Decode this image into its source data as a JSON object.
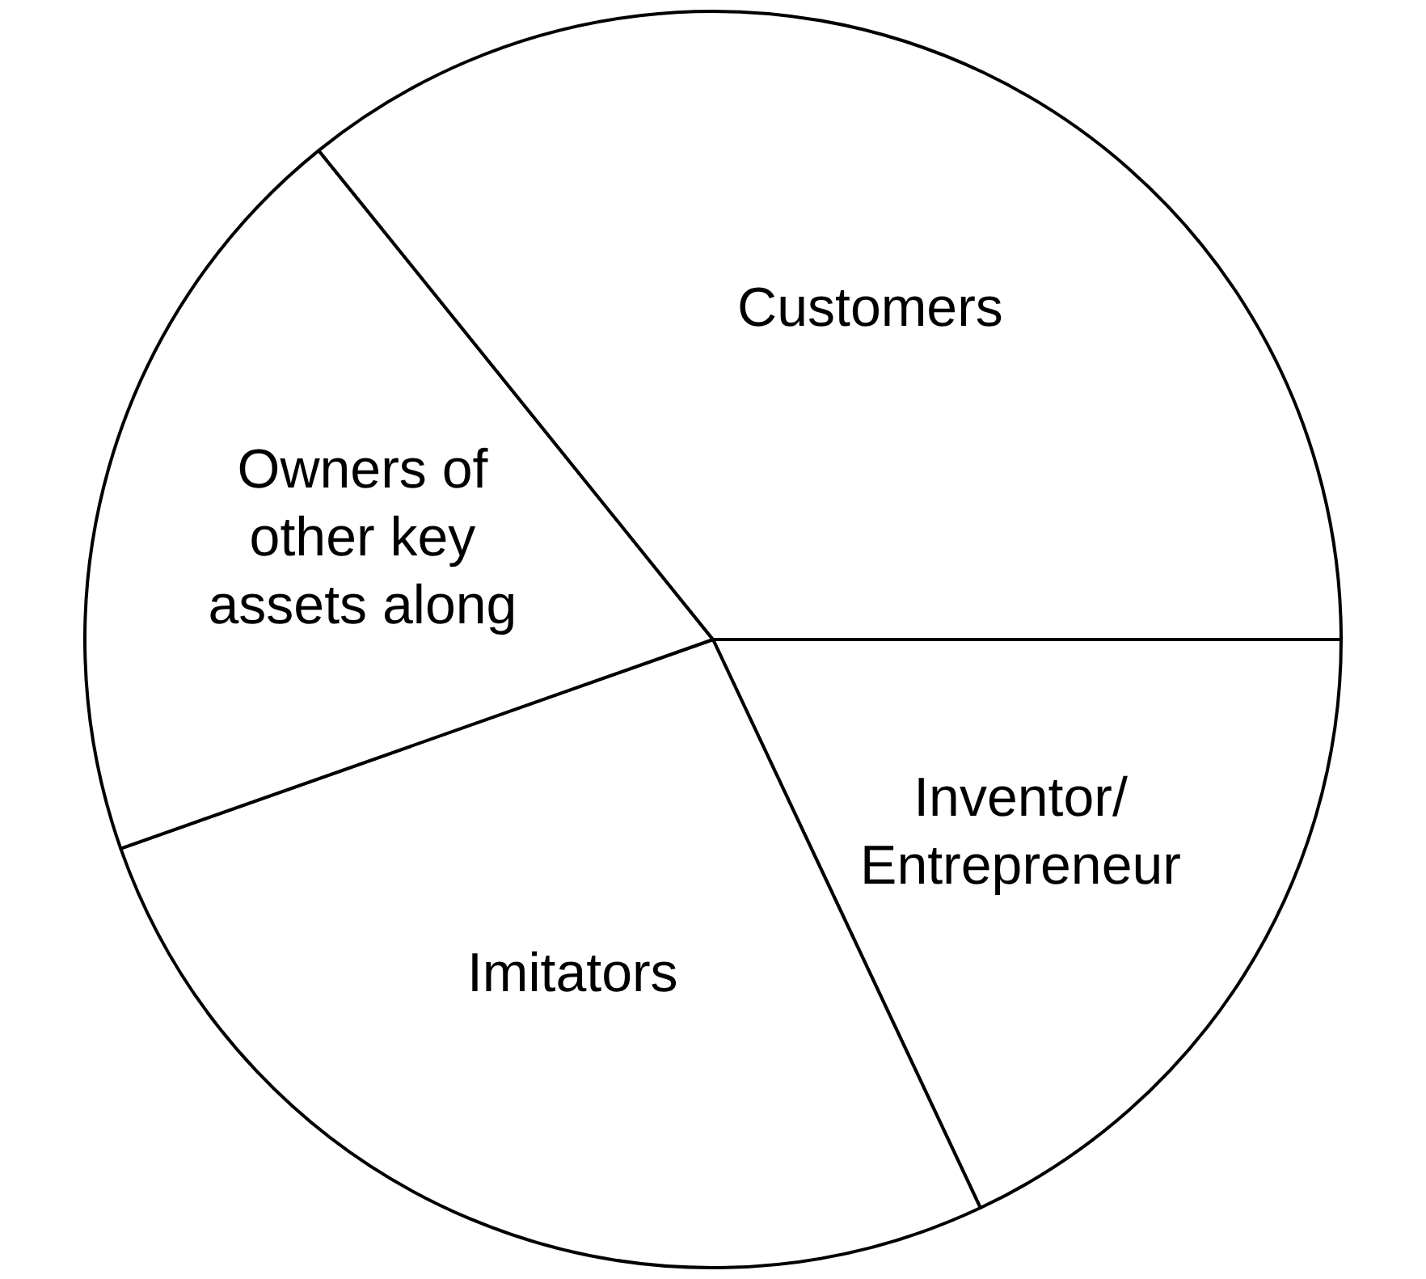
{
  "chart_data": {
    "type": "pie",
    "categories": [
      "Inventor/ Entrepreneur",
      "Imitators",
      "Owners of other key assets along",
      "Customers"
    ],
    "values": [
      18.0,
      26.6,
      19.6,
      35.8
    ],
    "colors": [
      "#ffffff",
      "#ffffff",
      "#ffffff",
      "#ffffff"
    ]
  }
}
